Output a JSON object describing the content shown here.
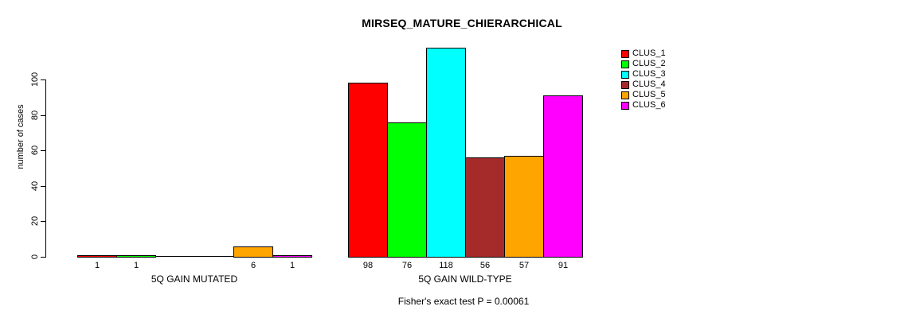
{
  "title": "MIRSEQ_MATURE_CHIERARCHICAL",
  "chart_data": {
    "type": "bar",
    "title": "MIRSEQ_MATURE_CHIERARCHICAL",
    "xlabel": "",
    "ylabel": "number of cases",
    "ylim": [
      0,
      118
    ],
    "yticks": [
      0,
      20,
      40,
      60,
      80,
      100
    ],
    "grid": false,
    "legend_position": "top-right",
    "series": [
      "CLUS_1",
      "CLUS_2",
      "CLUS_3",
      "CLUS_4",
      "CLUS_5",
      "CLUS_6"
    ],
    "series_colors": [
      "#ff0000",
      "#00ff00",
      "#00ffff",
      "#a52a2a",
      "#ffa500",
      "#ff00ff"
    ],
    "groups": [
      {
        "label": "5Q GAIN MUTATED",
        "values": [
          1,
          1,
          0,
          0,
          6,
          1
        ],
        "bar_labels": [
          "1",
          "1",
          "",
          "",
          "6",
          "1"
        ]
      },
      {
        "label": "5Q GAIN WILD-TYPE",
        "values": [
          98,
          76,
          118,
          56,
          57,
          91
        ],
        "bar_labels": [
          "98",
          "76",
          "118",
          "56",
          "57",
          "91"
        ]
      }
    ],
    "footnote": "Fisher's exact test P = 0.00061"
  },
  "legend": {
    "items": [
      {
        "label": "CLUS_1",
        "color": "#ff0000"
      },
      {
        "label": "CLUS_2",
        "color": "#00ff00"
      },
      {
        "label": "CLUS_3",
        "color": "#00ffff"
      },
      {
        "label": "CLUS_4",
        "color": "#a52a2a"
      },
      {
        "label": "CLUS_5",
        "color": "#ffa500"
      },
      {
        "label": "CLUS_6",
        "color": "#ff00ff"
      }
    ]
  }
}
